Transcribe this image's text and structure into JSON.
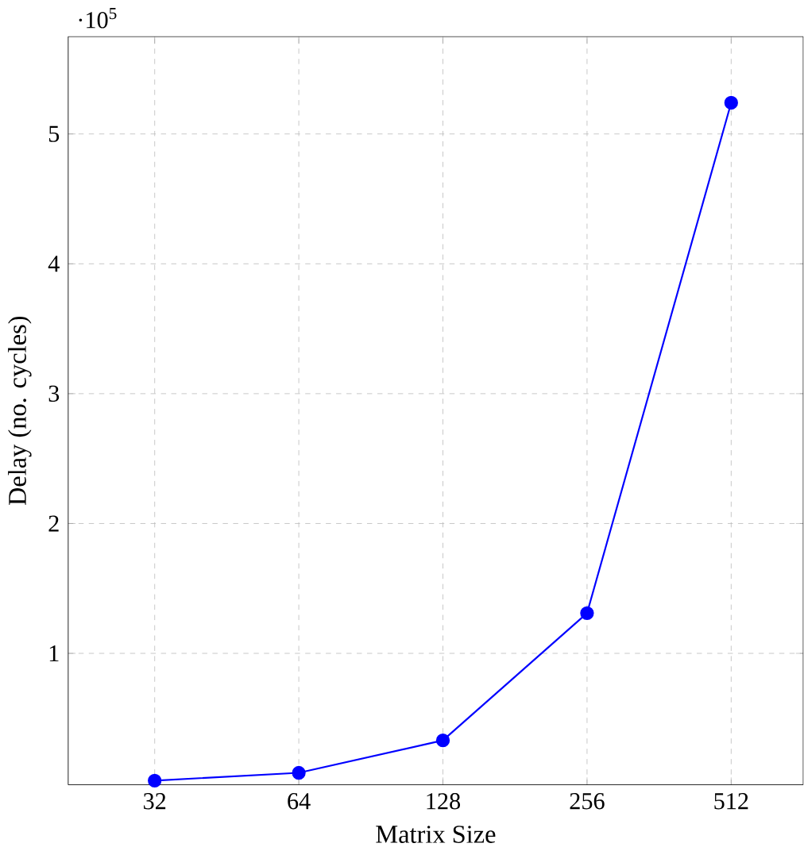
{
  "chart_data": {
    "type": "line",
    "xlabel": "Matrix Size",
    "ylabel": "Delay (no. cycles)",
    "categories": [
      "32",
      "64",
      "128",
      "256",
      "512"
    ],
    "values": [
      0.02,
      0.08,
      0.33,
      1.31,
      5.24
    ],
    "color": "#0000ff",
    "marker": "circle",
    "line_style": "solid",
    "ylim": [
      -0.012,
      5.75
    ],
    "yticks": [
      1,
      2,
      3,
      4,
      5
    ],
    "grid": true,
    "annotations": [
      "·10$^{5}$"
    ]
  }
}
